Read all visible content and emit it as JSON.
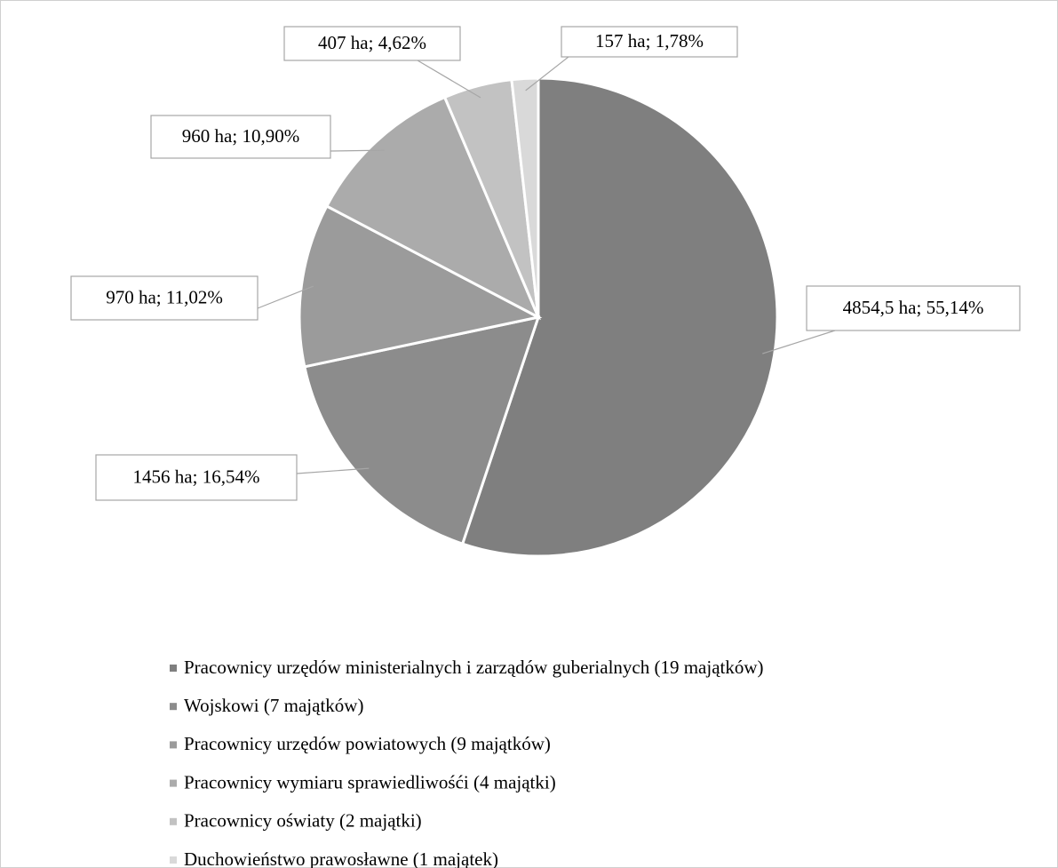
{
  "chart_data": {
    "type": "pie",
    "categories": [
      "Pracownicy urzędów ministerialnych i zarządów guberialnych (19 majątków)",
      "Wojskowi (7 majątków)",
      "Pracownicy urzędów powiatowych (9 majątków)",
      "Pracownicy wymiaru sprawiedliwośći (4 majątki)",
      "Pracownicy oświaty (2 majątki)",
      "Duchowieństwo prawosławne (1 majątek)"
    ],
    "values": [
      4854.5,
      1456,
      970,
      960,
      407,
      157
    ],
    "value_labels": [
      "4854,5 ha; 55,14%",
      "1456 ha; 16,54%",
      "970 ha; 11,02%",
      "960 ha; 10,90%",
      "407 ha; 4,62%",
      "157 ha; 1,78%"
    ],
    "colors": [
      "#7f7f7f",
      "#8c8c8c",
      "#9b9b9b",
      "#ababab",
      "#c2c2c2",
      "#d9d9d9"
    ],
    "legend": "bottom"
  }
}
